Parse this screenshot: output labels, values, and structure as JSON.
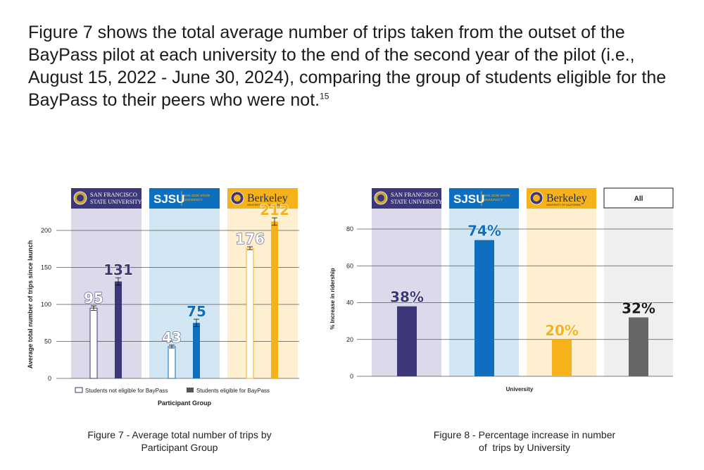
{
  "intro": {
    "text": "Figure 7 shows the total average number of trips taken from the outset of the BayPass pilot at each university to the end of the second year of the pilot (i.e., August 15, 2022 - June 30, 2024), comparing the group of students eligible for the BayPass to their peers who were not.",
    "footnote": "15"
  },
  "colors": {
    "sfsu": "#3b3779",
    "sjsu": "#0f6fbf",
    "berkeley": "#f6b21b",
    "all": "#666666",
    "sfsu_bg": "#dcdaea",
    "sjsu_bg": "#d2e6f3",
    "berkeley_bg": "#fdefd0",
    "all_bg": "#efefef"
  },
  "logos": {
    "sfsu_line1": "SAN FRANCISCO",
    "sfsu_line2": "STATE UNIVERSITY",
    "sjsu_main": "SJSU",
    "sjsu_sub1": "SAN JOSÉ STATE",
    "sjsu_sub2": "UNIVERSITY",
    "berkeley_main": "Berkeley",
    "berkeley_sub": "UNIVERSITY OF CALIFORNIA",
    "all_label": "All"
  },
  "chart_data": [
    {
      "type": "bar",
      "title": "Figure 7 - Average total number of trips by Participant Group",
      "caption_line1": "Figure 7 - Average total number of trips by",
      "caption_line2": "Participant Group",
      "xlabel": "Participant Group",
      "ylabel": "Average total number of trips since launch",
      "ylim": [
        0,
        220
      ],
      "yticks": [
        "0",
        "50",
        "100",
        "150",
        "200"
      ],
      "ytick_values": [
        0,
        50,
        100,
        150,
        200
      ],
      "categories": [
        "SFSU",
        "SJSU",
        "Berkeley"
      ],
      "series": [
        {
          "name": "Students not eligible for BayPass",
          "values": [
            95,
            43,
            176
          ],
          "labels": [
            "95",
            "43",
            "176"
          ],
          "error": [
            3,
            2,
            2
          ]
        },
        {
          "name": "Students eligible for BayPass",
          "values": [
            131,
            75,
            212
          ],
          "labels": [
            "131",
            "75",
            "212"
          ],
          "error": [
            5,
            5,
            5
          ]
        }
      ],
      "legend": [
        "Students not eligible for BayPass",
        "Students eligible for BayPass"
      ],
      "grid": true
    },
    {
      "type": "bar",
      "title": "Figure 8 - Percentage increase in number of trips by University",
      "caption_line1": "Figure 8 - Percentage increase in number",
      "caption_line2": "of  trips by University",
      "xlabel": "University",
      "ylabel": "% Increase in ridership",
      "ylim": [
        0,
        80
      ],
      "yticks": [
        "0",
        "20",
        "40",
        "60",
        "80"
      ],
      "ytick_values": [
        0,
        20,
        40,
        60,
        80
      ],
      "categories": [
        "SFSU",
        "SJSU",
        "Berkeley",
        "All"
      ],
      "values": [
        38,
        74,
        20,
        32
      ],
      "labels": [
        "38%",
        "74%",
        "20%",
        "32%"
      ],
      "grid": true
    }
  ]
}
